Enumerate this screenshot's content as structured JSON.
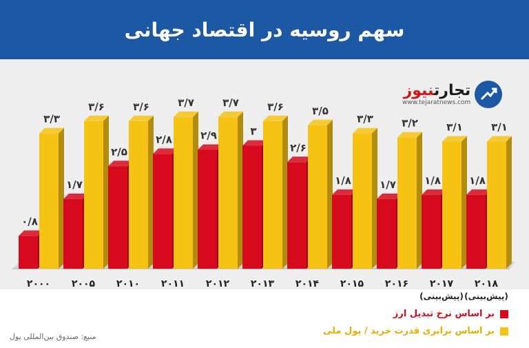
{
  "title": "سهم روسیه در اقتصاد جهانی",
  "logo": {
    "name_a": "تجارت",
    "name_b": "نیوز",
    "url": "www.tejaratnews.com"
  },
  "colors": {
    "header": "#1c58a3",
    "red": "#d7091c",
    "yellow": "#f6c315"
  },
  "legend": {
    "red_label": "بر اساس نرخ تبدیل ارز",
    "yellow_label": "بر اساس برابری قدرت خرید / پول ملی"
  },
  "source": "منبع: صندوق بین‌المللی پول",
  "chart_data": {
    "type": "bar",
    "title": "سهم روسیه در اقتصاد جهانی",
    "categories": [
      "۲۰۰۰",
      "۲۰۰۵",
      "۲۰۱۰",
      "۲۰۱۱",
      "۲۰۱۲",
      "۲۰۱۳",
      "۲۰۱۴",
      "۲۰۱۵",
      "۲۰۱۶",
      "۲۰۱۷",
      "۲۰۱۸"
    ],
    "category_notes": [
      "",
      "",
      "",
      "",
      "",
      "",
      "",
      "",
      "",
      "(پیش‌بینی)",
      "(پیش‌بینی)"
    ],
    "series": [
      {
        "name": "بر اساس نرخ تبدیل ارز",
        "values": [
          0.8,
          1.7,
          2.5,
          2.8,
          2.9,
          3,
          2.6,
          1.8,
          1.7,
          1.8,
          1.8
        ],
        "labels": [
          "۰/۸",
          "۱/۷",
          "۲/۵",
          "۲/۸",
          "۲/۹",
          "۳",
          "۲/۶",
          "۱/۸",
          "۱/۷",
          "۱/۸",
          "۱/۸"
        ]
      },
      {
        "name": "بر اساس برابری قدرت خرید / پول ملی",
        "values": [
          3.3,
          3.6,
          3.6,
          3.7,
          3.7,
          3.6,
          3.5,
          3.3,
          3.2,
          3.1,
          3.1
        ],
        "labels": [
          "۳/۳",
          "۳/۶",
          "۳/۶",
          "۳/۷",
          "۳/۷",
          "۳/۶",
          "۳/۵",
          "۳/۳",
          "۳/۲",
          "۳/۱",
          "۳/۱"
        ]
      }
    ],
    "grid": false,
    "legend_position": "bottom-right"
  }
}
